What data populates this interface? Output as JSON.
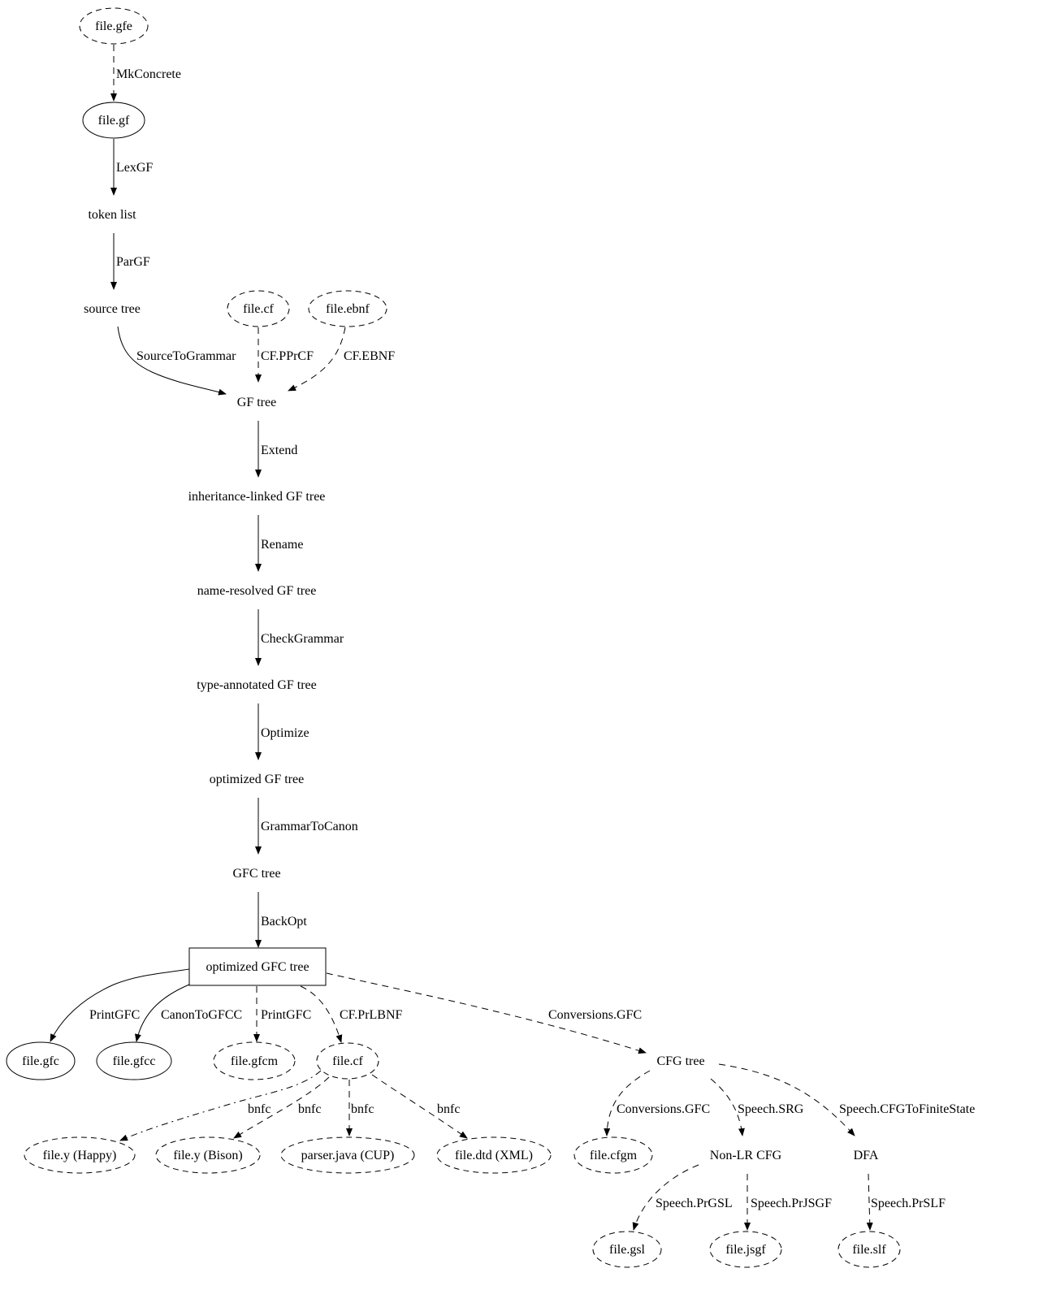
{
  "nodes": [
    {
      "id": "gfe",
      "label": "file.gfe",
      "shape": "ellipse",
      "style": "dashed"
    },
    {
      "id": "gf",
      "label": "file.gf",
      "shape": "ellipse",
      "style": "solid"
    },
    {
      "id": "tok",
      "label": "token list",
      "shape": "plaintext",
      "style": "solid"
    },
    {
      "id": "src",
      "label": "source tree",
      "shape": "plaintext",
      "style": "solid"
    },
    {
      "id": "cf1",
      "label": "file.cf",
      "shape": "ellipse",
      "style": "dashed"
    },
    {
      "id": "ebnf",
      "label": "file.ebnf",
      "shape": "ellipse",
      "style": "dashed"
    },
    {
      "id": "gft",
      "label": "GF tree",
      "shape": "plaintext",
      "style": "solid"
    },
    {
      "id": "inh",
      "label": "inheritance-linked GF tree",
      "shape": "plaintext",
      "style": "solid"
    },
    {
      "id": "nres",
      "label": "name-resolved GF tree",
      "shape": "plaintext",
      "style": "solid"
    },
    {
      "id": "tann",
      "label": "type-annotated GF tree",
      "shape": "plaintext",
      "style": "solid"
    },
    {
      "id": "ogf",
      "label": "optimized GF tree",
      "shape": "plaintext",
      "style": "solid"
    },
    {
      "id": "gfc",
      "label": "GFC tree",
      "shape": "plaintext",
      "style": "solid"
    },
    {
      "id": "ogfc",
      "label": "optimized GFC tree",
      "shape": "box",
      "style": "solid"
    },
    {
      "id": "fgfc",
      "label": "file.gfc",
      "shape": "ellipse",
      "style": "solid"
    },
    {
      "id": "fgfcc",
      "label": "file.gfcc",
      "shape": "ellipse",
      "style": "solid"
    },
    {
      "id": "fgfcm",
      "label": "file.gfcm",
      "shape": "ellipse",
      "style": "dashed"
    },
    {
      "id": "cf2",
      "label": "file.cf",
      "shape": "ellipse",
      "style": "dashed"
    },
    {
      "id": "cfg",
      "label": "CFG tree",
      "shape": "plaintext",
      "style": "solid"
    },
    {
      "id": "happy",
      "label": "file.y (Happy)",
      "shape": "ellipse",
      "style": "dashed"
    },
    {
      "id": "bison",
      "label": "file.y (Bison)",
      "shape": "ellipse",
      "style": "dashed"
    },
    {
      "id": "cup",
      "label": "parser.java (CUP)",
      "shape": "ellipse",
      "style": "dashed"
    },
    {
      "id": "dtd",
      "label": "file.dtd (XML)",
      "shape": "ellipse",
      "style": "dashed"
    },
    {
      "id": "cfgm",
      "label": "file.cfgm",
      "shape": "ellipse",
      "style": "dashed"
    },
    {
      "id": "nonlr",
      "label": "Non-LR CFG",
      "shape": "plaintext",
      "style": "solid"
    },
    {
      "id": "dfa",
      "label": "DFA",
      "shape": "plaintext",
      "style": "solid"
    },
    {
      "id": "gsl",
      "label": "file.gsl",
      "shape": "ellipse",
      "style": "dashed"
    },
    {
      "id": "jsgf",
      "label": "file.jsgf",
      "shape": "ellipse",
      "style": "dashed"
    },
    {
      "id": "slf",
      "label": "file.slf",
      "shape": "ellipse",
      "style": "dashed"
    }
  ],
  "edges": [
    {
      "from": "gfe",
      "to": "gf",
      "label": "MkConcrete",
      "style": "dashed"
    },
    {
      "from": "gf",
      "to": "tok",
      "label": "LexGF",
      "style": "solid"
    },
    {
      "from": "tok",
      "to": "src",
      "label": "ParGF",
      "style": "solid"
    },
    {
      "from": "src",
      "to": "gft",
      "label": "SourceToGrammar",
      "style": "solid"
    },
    {
      "from": "cf1",
      "to": "gft",
      "label": "CF.PPrCF",
      "style": "dashed"
    },
    {
      "from": "ebnf",
      "to": "gft",
      "label": "CF.EBNF",
      "style": "dashed"
    },
    {
      "from": "gft",
      "to": "inh",
      "label": "Extend",
      "style": "solid"
    },
    {
      "from": "inh",
      "to": "nres",
      "label": "Rename",
      "style": "solid"
    },
    {
      "from": "nres",
      "to": "tann",
      "label": "CheckGrammar",
      "style": "solid"
    },
    {
      "from": "tann",
      "to": "ogf",
      "label": "Optimize",
      "style": "solid"
    },
    {
      "from": "ogf",
      "to": "gfc",
      "label": "GrammarToCanon",
      "style": "solid"
    },
    {
      "from": "gfc",
      "to": "ogfc",
      "label": "BackOpt",
      "style": "solid"
    },
    {
      "from": "ogfc",
      "to": "fgfc",
      "label": "PrintGFC",
      "style": "solid"
    },
    {
      "from": "ogfc",
      "to": "fgfcc",
      "label": "CanonToGFCC",
      "style": "solid"
    },
    {
      "from": "ogfc",
      "to": "fgfcm",
      "label": "PrintGFC",
      "style": "dashed"
    },
    {
      "from": "ogfc",
      "to": "cf2",
      "label": "CF.PrLBNF",
      "style": "dashed"
    },
    {
      "from": "ogfc",
      "to": "cfg",
      "label": "Conversions.GFC",
      "style": "dashed"
    },
    {
      "from": "cf2",
      "to": "happy",
      "label": "bnfc",
      "style": "dashdot"
    },
    {
      "from": "cf2",
      "to": "bison",
      "label": "bnfc",
      "style": "dashed"
    },
    {
      "from": "cf2",
      "to": "cup",
      "label": "bnfc",
      "style": "dashed"
    },
    {
      "from": "cf2",
      "to": "dtd",
      "label": "bnfc",
      "style": "dashed"
    },
    {
      "from": "cfg",
      "to": "cfgm",
      "label": "Conversions.GFC",
      "style": "dashed"
    },
    {
      "from": "cfg",
      "to": "nonlr",
      "label": "Speech.SRG",
      "style": "dashed"
    },
    {
      "from": "cfg",
      "to": "dfa",
      "label": "Speech.CFGToFiniteState",
      "style": "dashed"
    },
    {
      "from": "nonlr",
      "to": "gsl",
      "label": "Speech.PrGSL",
      "style": "dashed"
    },
    {
      "from": "nonlr",
      "to": "jsgf",
      "label": "Speech.PrJSGF",
      "style": "dashed"
    },
    {
      "from": "dfa",
      "to": "slf",
      "label": "Speech.PrSLF",
      "style": "dashed"
    }
  ]
}
